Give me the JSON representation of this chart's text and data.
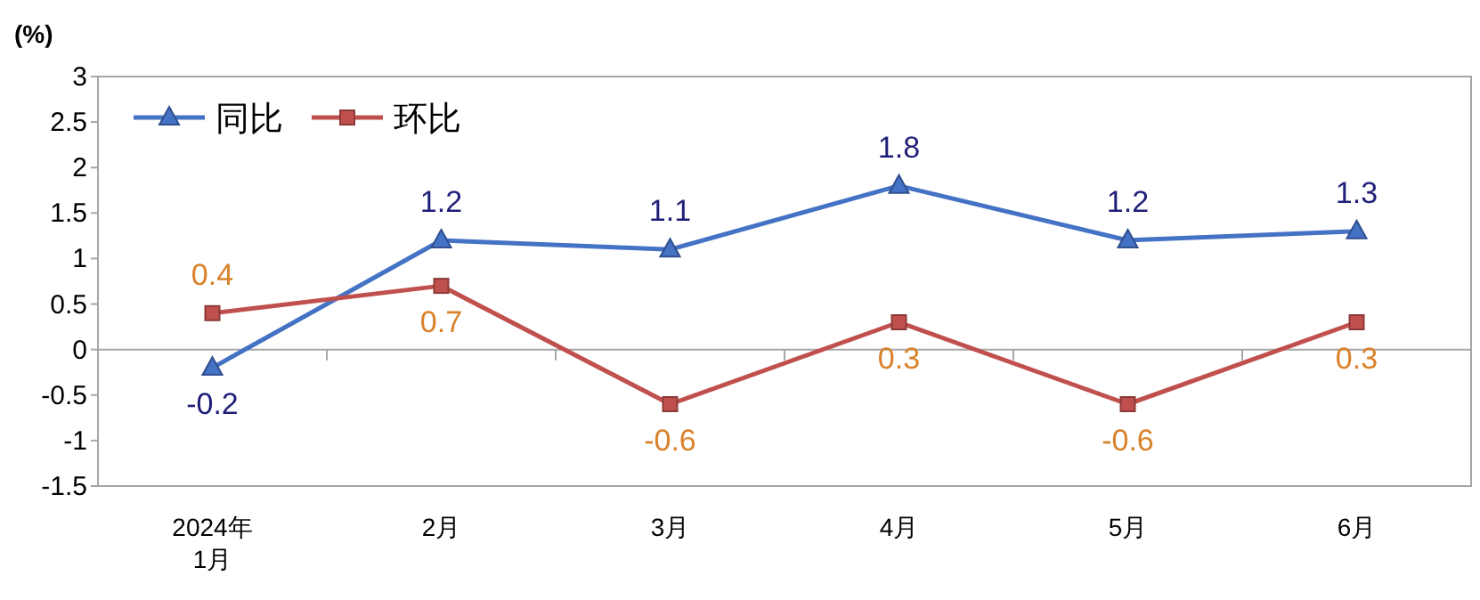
{
  "chart_data": {
    "type": "line",
    "ylabel": "(%)",
    "categories": [
      "2024年\n1月",
      "2月",
      "3月",
      "4月",
      "5月",
      "6月"
    ],
    "series": [
      {
        "name": "同比",
        "color": "#4472c4",
        "marker": "triangle",
        "values": [
          -0.2,
          1.2,
          1.1,
          1.8,
          1.2,
          1.3
        ]
      },
      {
        "name": "环比",
        "color": "#c0504d",
        "marker": "square",
        "values": [
          0.4,
          0.7,
          -0.6,
          0.3,
          -0.6,
          0.3
        ]
      }
    ],
    "ylim": [
      -1.5,
      3
    ],
    "yticks": [
      -1.5,
      -1,
      -0.5,
      0,
      0.5,
      1,
      1.5,
      2,
      2.5,
      3
    ],
    "legend": "top left",
    "data_labels": true
  }
}
